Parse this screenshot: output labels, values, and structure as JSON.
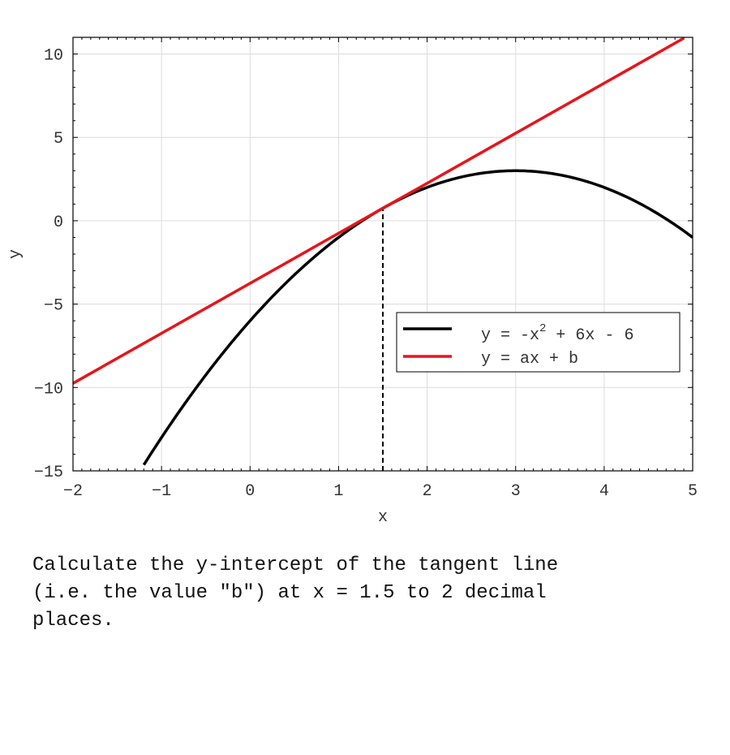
{
  "chart_data": {
    "type": "line",
    "title": "",
    "xlabel": "x",
    "ylabel": "y",
    "xlim": [
      -2,
      5
    ],
    "ylim": [
      -15,
      11
    ],
    "xticks": [
      -2,
      -1,
      0,
      1,
      2,
      3,
      4,
      5
    ],
    "xtick_labels": [
      "−2",
      "−1",
      "0",
      "1",
      "2",
      "3",
      "4",
      "5"
    ],
    "yticks": [
      -15,
      -10,
      -5,
      0,
      5,
      10
    ],
    "ytick_labels": [
      "−15",
      "−10",
      "−5",
      "0",
      "5",
      "10"
    ],
    "grid": true,
    "legend_position": "lower-right",
    "series": [
      {
        "name_parts": [
          "y = -x",
          "2",
          " + 6x - 6"
        ],
        "color": "#000000",
        "x": [
          -1.2,
          -1.0,
          -0.5,
          0.0,
          0.5,
          1.0,
          1.5,
          2.0,
          2.5,
          3.0,
          3.5,
          4.0,
          4.5,
          5.0
        ],
        "y": [
          -14.64,
          -13.0,
          -9.25,
          -6.0,
          -3.25,
          -1.0,
          0.75,
          2.0,
          2.75,
          3.0,
          2.75,
          2.0,
          0.75,
          -1.0
        ]
      },
      {
        "name": "y = ax + b",
        "color": "#e8141b",
        "x": [
          -2.0,
          4.9
        ],
        "y": [
          -9.75,
          10.95
        ]
      }
    ],
    "annotations": [
      {
        "type": "vertical-dashed-line",
        "x": 1.5,
        "y_from": -15,
        "y_to": 0.75,
        "color": "#000000"
      }
    ]
  },
  "question": {
    "text": "Calculate the y-intercept of the tangent line\n(i.e. the value \"b\") at x = 1.5 to 2 decimal\nplaces."
  }
}
